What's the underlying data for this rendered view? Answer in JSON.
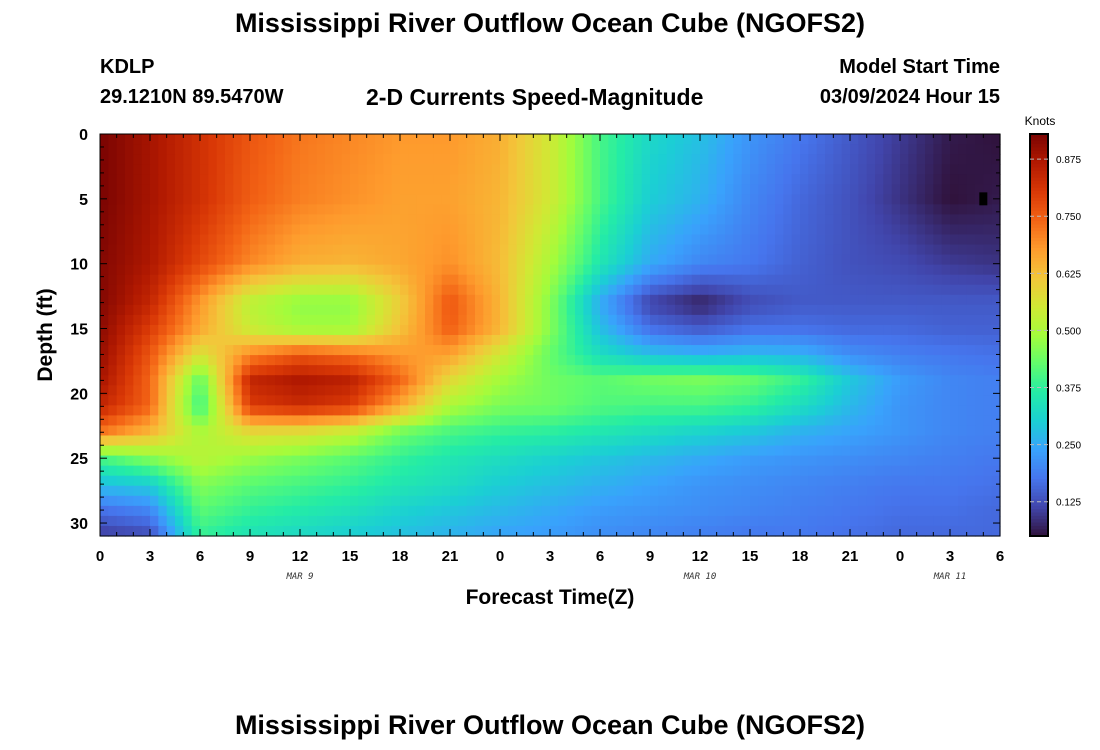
{
  "page": {
    "title_top": "Mississippi River Outflow Ocean Cube (NGOFS2)",
    "title_bottom": "Mississippi River Outflow Ocean Cube (NGOFS2)",
    "station_id": "KDLP",
    "station_coords": "29.1210N  89.5470W",
    "plot_subtitle": "2-D Currents Speed-Magnitude",
    "model_start_label": "Model Start Time",
    "model_start_value": "03/09/2024 Hour 15"
  },
  "chart_data": {
    "type": "heatmap",
    "title": "2-D Currents Speed-Magnitude",
    "xlabel": "Forecast Time(Z)",
    "ylabel": "Depth (ft)",
    "x_tick_labels": [
      "0",
      "3",
      "6",
      "9",
      "12",
      "15",
      "18",
      "21",
      "0",
      "3",
      "6",
      "9",
      "12",
      "15",
      "18",
      "21",
      "0",
      "3",
      "6"
    ],
    "x_tick_hours": [
      0,
      3,
      6,
      9,
      12,
      15,
      18,
      21,
      24,
      27,
      30,
      33,
      36,
      39,
      42,
      45,
      48,
      51,
      54
    ],
    "xlim_hours": [
      0,
      54
    ],
    "date_labels": [
      {
        "text": "MAR 9",
        "hour": 12
      },
      {
        "text": "MAR 10",
        "hour": 36
      },
      {
        "text": "MAR 11",
        "hour": 51
      }
    ],
    "y_ticks": [
      0,
      5,
      10,
      15,
      20,
      25,
      30
    ],
    "ylim": [
      0,
      31
    ],
    "y_inverted": true,
    "colorbar": {
      "unit": "Knots",
      "range": [
        0.05,
        0.93
      ],
      "ticks": [
        0.875,
        0.75,
        0.625,
        0.5,
        0.375,
        0.25,
        0.125
      ],
      "tick_labels": [
        "0.875",
        "0.750",
        "0.625",
        "0.500",
        "0.375",
        "0.250",
        "0.125"
      ],
      "colors": [
        "#30123b",
        "#4145ab",
        "#4675ed",
        "#39a2fc",
        "#1bcfd4",
        "#24eca6",
        "#61fc6c",
        "#a4fc3b",
        "#d1e834",
        "#f3c63a",
        "#fe9b2d",
        "#f36315",
        "#d93806",
        "#b11901",
        "#7a0402"
      ]
    },
    "speed_grid": {
      "times_hours": [
        0,
        3,
        6,
        9,
        12,
        15,
        18,
        21,
        24,
        27,
        30,
        33,
        36,
        39,
        42,
        45,
        48,
        51,
        54
      ],
      "depths_ft": [
        0,
        5,
        10,
        13,
        15,
        17,
        19,
        21,
        23,
        25,
        27,
        29,
        31
      ],
      "values": [
        [
          0.93,
          0.88,
          0.82,
          0.76,
          0.72,
          0.7,
          0.68,
          0.68,
          0.65,
          0.55,
          0.4,
          0.32,
          0.28,
          0.22,
          0.18,
          0.14,
          0.1,
          0.06,
          0.05
        ],
        [
          0.93,
          0.88,
          0.82,
          0.75,
          0.71,
          0.69,
          0.67,
          0.67,
          0.64,
          0.55,
          0.4,
          0.3,
          0.26,
          0.2,
          0.16,
          0.13,
          0.09,
          0.05,
          0.06
        ],
        [
          0.92,
          0.87,
          0.78,
          0.7,
          0.65,
          0.64,
          0.66,
          0.69,
          0.63,
          0.5,
          0.35,
          0.25,
          0.2,
          0.18,
          0.15,
          0.13,
          0.12,
          0.1,
          0.09
        ],
        [
          0.92,
          0.84,
          0.68,
          0.52,
          0.47,
          0.47,
          0.6,
          0.76,
          0.64,
          0.46,
          0.25,
          0.11,
          0.07,
          0.12,
          0.14,
          0.14,
          0.14,
          0.14,
          0.14
        ],
        [
          0.91,
          0.8,
          0.66,
          0.54,
          0.49,
          0.49,
          0.62,
          0.75,
          0.64,
          0.46,
          0.28,
          0.17,
          0.14,
          0.17,
          0.17,
          0.16,
          0.16,
          0.15,
          0.15
        ],
        [
          0.9,
          0.76,
          0.56,
          0.7,
          0.76,
          0.73,
          0.68,
          0.67,
          0.55,
          0.43,
          0.33,
          0.28,
          0.26,
          0.27,
          0.26,
          0.21,
          0.19,
          0.18,
          0.17
        ],
        [
          0.88,
          0.74,
          0.42,
          0.84,
          0.87,
          0.85,
          0.74,
          0.58,
          0.49,
          0.44,
          0.42,
          0.44,
          0.45,
          0.43,
          0.38,
          0.29,
          0.23,
          0.2,
          0.19
        ],
        [
          0.84,
          0.74,
          0.38,
          0.8,
          0.83,
          0.8,
          0.66,
          0.5,
          0.45,
          0.44,
          0.41,
          0.4,
          0.4,
          0.38,
          0.33,
          0.27,
          0.22,
          0.2,
          0.19
        ],
        [
          0.72,
          0.64,
          0.5,
          0.58,
          0.57,
          0.53,
          0.44,
          0.4,
          0.38,
          0.37,
          0.35,
          0.33,
          0.31,
          0.29,
          0.26,
          0.24,
          0.22,
          0.2,
          0.19
        ],
        [
          0.4,
          0.46,
          0.52,
          0.48,
          0.45,
          0.42,
          0.38,
          0.35,
          0.33,
          0.31,
          0.29,
          0.27,
          0.25,
          0.23,
          0.22,
          0.21,
          0.2,
          0.19,
          0.18
        ],
        [
          0.28,
          0.3,
          0.46,
          0.42,
          0.4,
          0.38,
          0.35,
          0.33,
          0.3,
          0.28,
          0.26,
          0.24,
          0.22,
          0.21,
          0.2,
          0.19,
          0.18,
          0.18,
          0.17
        ],
        [
          0.17,
          0.2,
          0.42,
          0.38,
          0.36,
          0.34,
          0.31,
          0.29,
          0.27,
          0.25,
          0.23,
          0.22,
          0.21,
          0.2,
          0.19,
          0.18,
          0.17,
          0.17,
          0.16
        ],
        [
          0.1,
          0.12,
          0.38,
          0.34,
          0.32,
          0.3,
          0.28,
          0.26,
          0.24,
          0.23,
          0.21,
          0.2,
          0.19,
          0.18,
          0.18,
          0.17,
          0.16,
          0.16,
          0.16
        ]
      ]
    }
  }
}
